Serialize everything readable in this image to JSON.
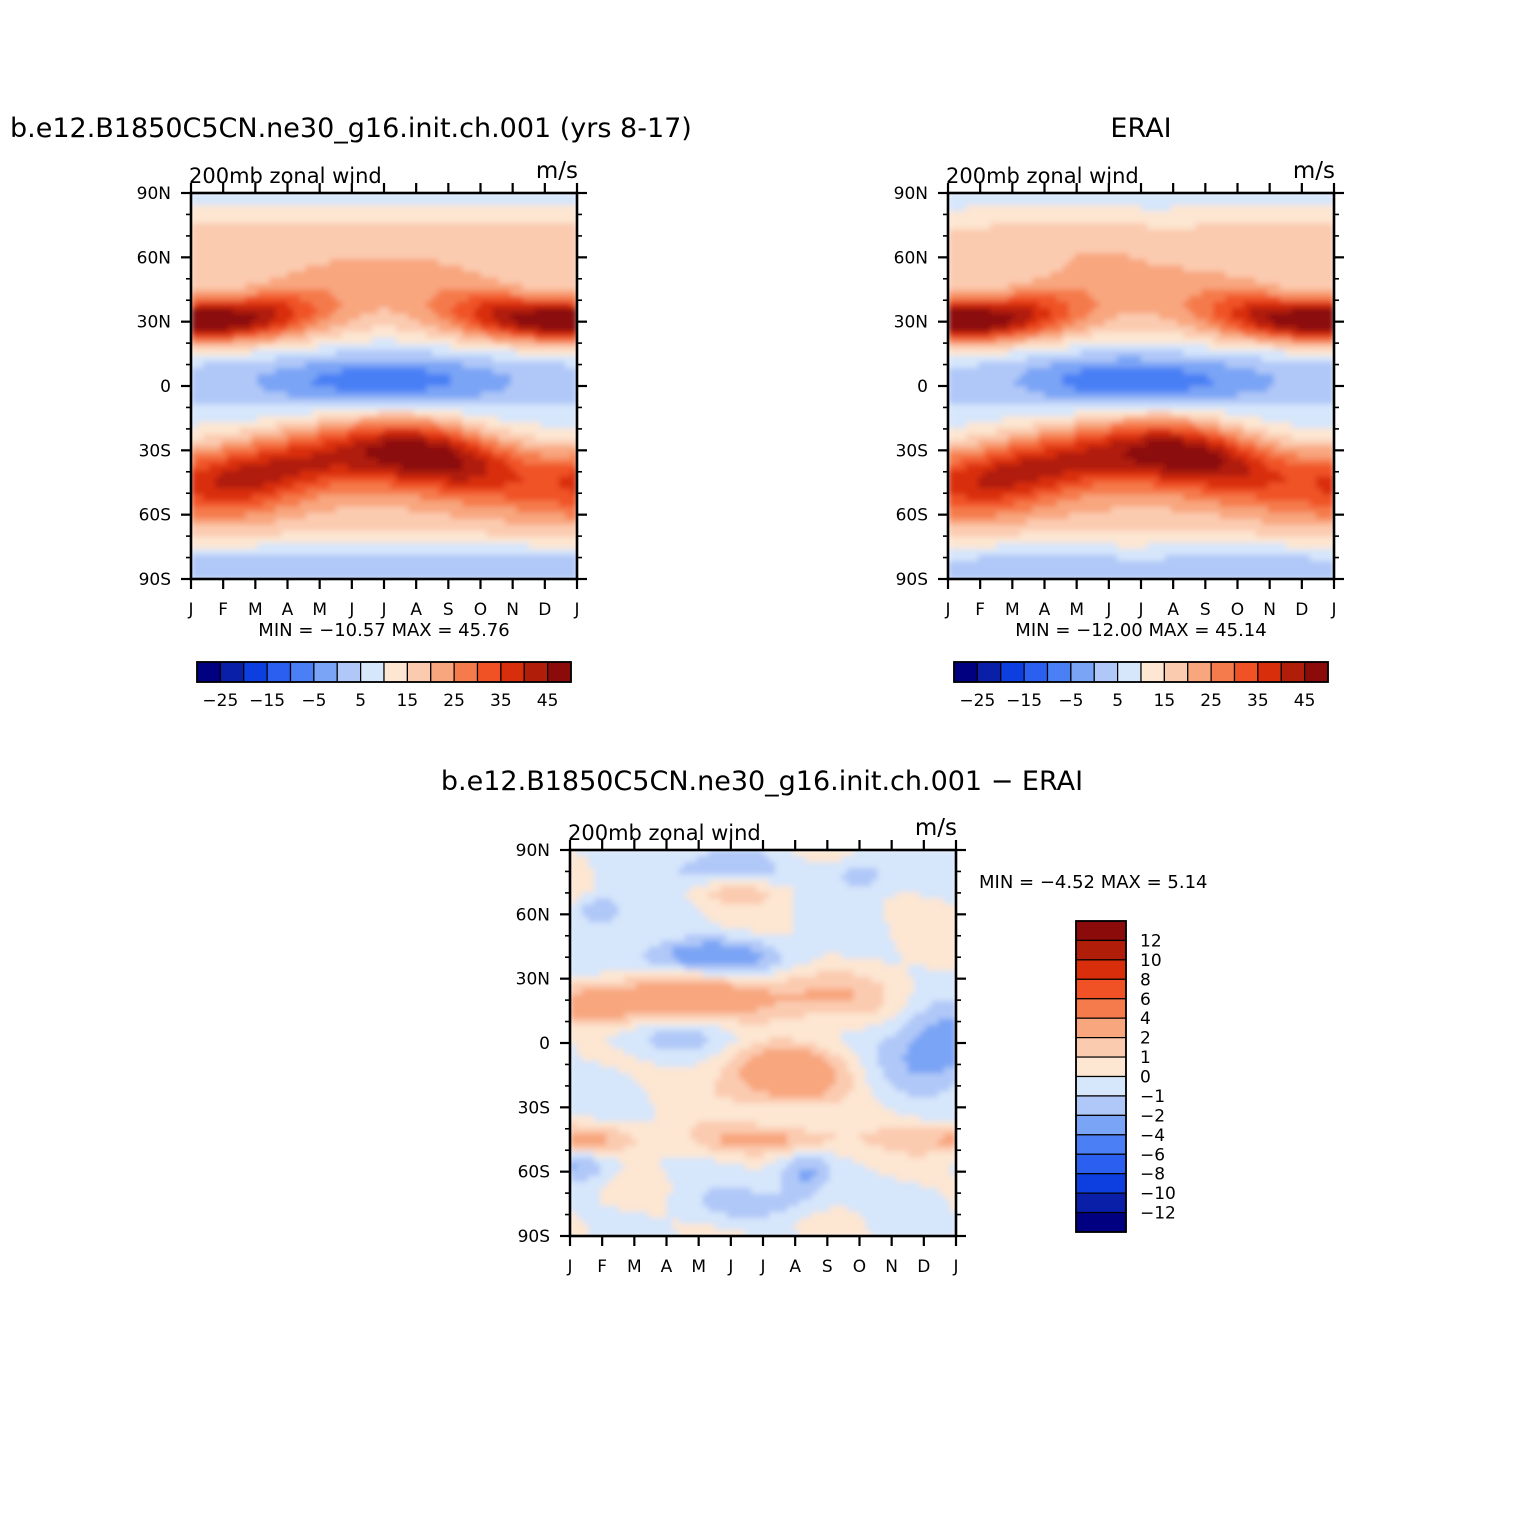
{
  "panels": [
    {
      "title": "b.e12.B1850C5CN.ne30_g16.init.ch.001 (yrs 8-17)",
      "left_label": "200mb  zonal  wind",
      "units": "m/s",
      "stats_text": "MIN  =  −10.57  MAX  =    45.76",
      "colorbar_labels": [
        "−25",
        "−15",
        "−5",
        "5",
        "15",
        "25",
        "35",
        "45"
      ]
    },
    {
      "title": "ERAI",
      "left_label": "200mb  zonal  wind",
      "units": "m/s",
      "stats_text": "MIN  =  −12.00  MAX  =    45.14",
      "colorbar_labels": [
        "−25",
        "−15",
        "−5",
        "5",
        "15",
        "25",
        "35",
        "45"
      ]
    },
    {
      "title": "b.e12.B1850C5CN.ne30_g16.init.ch.001  −  ERAI",
      "left_label": "200mb  zonal  wind",
      "units": "m/s",
      "stats_text": "MIN  =    −4.52  MAX  =     5.14",
      "colorbar_labels": [
        "12",
        "10",
        "8",
        "6",
        "4",
        "2",
        "1",
        "0",
        "−1",
        "−2",
        "−4",
        "−6",
        "−8",
        "−10",
        "−12"
      ]
    }
  ],
  "palette_abs": [
    "#000080",
    "#0a1fa8",
    "#0d3fe0",
    "#2a5ff0",
    "#4a7ff5",
    "#7aa4f5",
    "#b0c8f8",
    "#d6e6fb",
    "#fde6d2",
    "#fbcbb0",
    "#f8a67e",
    "#f57a4c",
    "#f05225",
    "#d92e0c",
    "#b01d08",
    "#8b0a0a"
  ],
  "palette_diff": [
    "#000080",
    "#0a1fa8",
    "#0d3fe0",
    "#2a5ff0",
    "#4a7ff5",
    "#7aa4f5",
    "#b0c8f8",
    "#d6e6fb",
    "#fde6d2",
    "#fbcbb0",
    "#f8a67e",
    "#f57a4c",
    "#f05225",
    "#d92e0c",
    "#b01d08",
    "#8b0a0a"
  ],
  "chart_data": [
    {
      "type": "heatmap",
      "title": "b.e12.B1850C5CN.ne30_g16.init.ch.001 (yrs 8-17)",
      "xlabel": "",
      "ylabel": "",
      "x_ticks": [
        "J",
        "F",
        "M",
        "A",
        "M",
        "J",
        "J",
        "A",
        "S",
        "O",
        "N",
        "D",
        "J"
      ],
      "y_ticks": [
        "90N",
        "60N",
        "30N",
        "0",
        "30S",
        "60S",
        "90S"
      ],
      "ylim": [
        -90,
        90
      ],
      "contour_levels": [
        -30,
        -25,
        -20,
        -15,
        -10,
        -5,
        0,
        5,
        10,
        15,
        20,
        25,
        30,
        35,
        40,
        45
      ],
      "min": -10.57,
      "max": 45.76,
      "units": "m/s",
      "field_label": "200mb  zonal  wind"
    },
    {
      "type": "heatmap",
      "title": "ERAI",
      "xlabel": "",
      "ylabel": "",
      "x_ticks": [
        "J",
        "F",
        "M",
        "A",
        "M",
        "J",
        "J",
        "A",
        "S",
        "O",
        "N",
        "D",
        "J"
      ],
      "y_ticks": [
        "90N",
        "60N",
        "30N",
        "0",
        "30S",
        "60S",
        "90S"
      ],
      "ylim": [
        -90,
        90
      ],
      "contour_levels": [
        -30,
        -25,
        -20,
        -15,
        -10,
        -5,
        0,
        5,
        10,
        15,
        20,
        25,
        30,
        35,
        40,
        45
      ],
      "min": -12.0,
      "max": 45.14,
      "units": "m/s",
      "field_label": "200mb  zonal  wind"
    },
    {
      "type": "heatmap",
      "title": "b.e12.B1850C5CN.ne30_g16.init.ch.001  −  ERAI",
      "xlabel": "",
      "ylabel": "",
      "x_ticks": [
        "J",
        "F",
        "M",
        "A",
        "M",
        "J",
        "J",
        "A",
        "S",
        "O",
        "N",
        "D",
        "J"
      ],
      "y_ticks": [
        "90N",
        "60N",
        "30N",
        "0",
        "30S",
        "60S",
        "90S"
      ],
      "ylim": [
        -90,
        90
      ],
      "contour_levels": [
        -12,
        -10,
        -8,
        -6,
        -4,
        -2,
        -1,
        0,
        1,
        2,
        4,
        6,
        8,
        10,
        12
      ],
      "min": -4.52,
      "max": 5.14,
      "units": "m/s",
      "field_label": "200mb  zonal  wind"
    }
  ]
}
